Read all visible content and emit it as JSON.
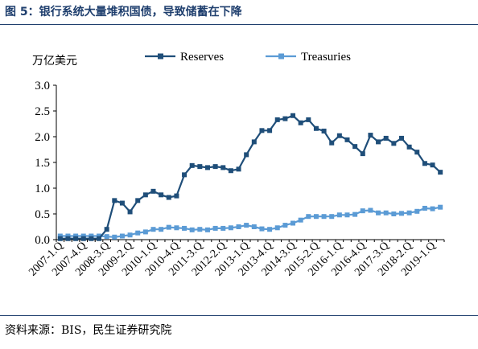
{
  "figure_title": "图 5：银行系统大量堆积国债，导致储蓄在下降",
  "source_note": "资料来源：BIS，民生证券研究院",
  "chart_data": {
    "type": "line",
    "ylabel": "万亿美元",
    "ylim": [
      0,
      3.0
    ],
    "yticks": [
      "0.0",
      "0.5",
      "1.0",
      "1.5",
      "2.0",
      "2.5",
      "3.0"
    ],
    "grid": false,
    "legend_position": "top",
    "x": [
      "2007-1.Q",
      "2007-2.Q",
      "2007-3.Q",
      "2007-4.Q",
      "2008-1.Q",
      "2008-2.Q",
      "2008-3.Q",
      "2008-4.Q",
      "2009-1.Q",
      "2009-2.Q",
      "2009-3.Q",
      "2009-4.Q",
      "2010-1.Q",
      "2010-2.Q",
      "2010-3.Q",
      "2010-4.Q",
      "2011-1.Q",
      "2011-2.Q",
      "2011-3.Q",
      "2011-4.Q",
      "2012-1.Q",
      "2012-2.Q",
      "2012-3.Q",
      "2012-4.Q",
      "2013-1.Q",
      "2013-2.Q",
      "2013-3.Q",
      "2013-4.Q",
      "2014-1.Q",
      "2014-2.Q",
      "2014-3.Q",
      "2014-4.Q",
      "2015-1.Q",
      "2015-2.Q",
      "2015-3.Q",
      "2015-4.Q",
      "2016-1.Q",
      "2016-2.Q",
      "2016-3.Q",
      "2016-4.Q",
      "2017-1.Q",
      "2017-2.Q",
      "2017-3.Q",
      "2017-4.Q",
      "2018-1.Q",
      "2018-2.Q",
      "2018-3.Q",
      "2018-4.Q",
      "2019-1.Q",
      "2019-2.Q"
    ],
    "xtick_labels": [
      "2007-1.Q",
      "2007-4.Q",
      "2008-3.Q",
      "2009-2.Q",
      "2010-1.Q",
      "2010-4.Q",
      "2011-3.Q",
      "2012-2.Q",
      "2013-1.Q",
      "2013-4.Q",
      "2014-3.Q",
      "2015-2.Q",
      "2016-1.Q",
      "2016-4.Q",
      "2017-3.Q",
      "2018-2.Q",
      "2019-1.Q"
    ],
    "series": [
      {
        "name": "Reserves",
        "color": "#1f4e79",
        "marker": "square",
        "values": [
          0.02,
          0.02,
          0.02,
          0.02,
          0.02,
          0.02,
          0.2,
          0.76,
          0.71,
          0.54,
          0.76,
          0.87,
          0.94,
          0.87,
          0.82,
          0.85,
          1.26,
          1.44,
          1.42,
          1.4,
          1.42,
          1.4,
          1.34,
          1.37,
          1.65,
          1.9,
          2.12,
          2.12,
          2.33,
          2.35,
          2.41,
          2.27,
          2.33,
          2.16,
          2.11,
          1.88,
          2.02,
          1.94,
          1.81,
          1.67,
          2.03,
          1.9,
          1.97,
          1.87,
          1.97,
          1.8,
          1.7,
          1.48,
          1.45,
          1.31
        ]
      },
      {
        "name": "Treasuries",
        "color": "#5b9bd5",
        "marker": "square",
        "values": [
          0.07,
          0.07,
          0.07,
          0.07,
          0.07,
          0.07,
          0.06,
          0.05,
          0.07,
          0.09,
          0.13,
          0.15,
          0.2,
          0.2,
          0.24,
          0.23,
          0.22,
          0.19,
          0.2,
          0.19,
          0.22,
          0.22,
          0.23,
          0.25,
          0.28,
          0.25,
          0.21,
          0.2,
          0.23,
          0.28,
          0.32,
          0.38,
          0.45,
          0.45,
          0.45,
          0.45,
          0.48,
          0.48,
          0.49,
          0.56,
          0.57,
          0.52,
          0.52,
          0.5,
          0.51,
          0.52,
          0.55,
          0.61,
          0.6,
          0.63
        ]
      }
    ]
  }
}
